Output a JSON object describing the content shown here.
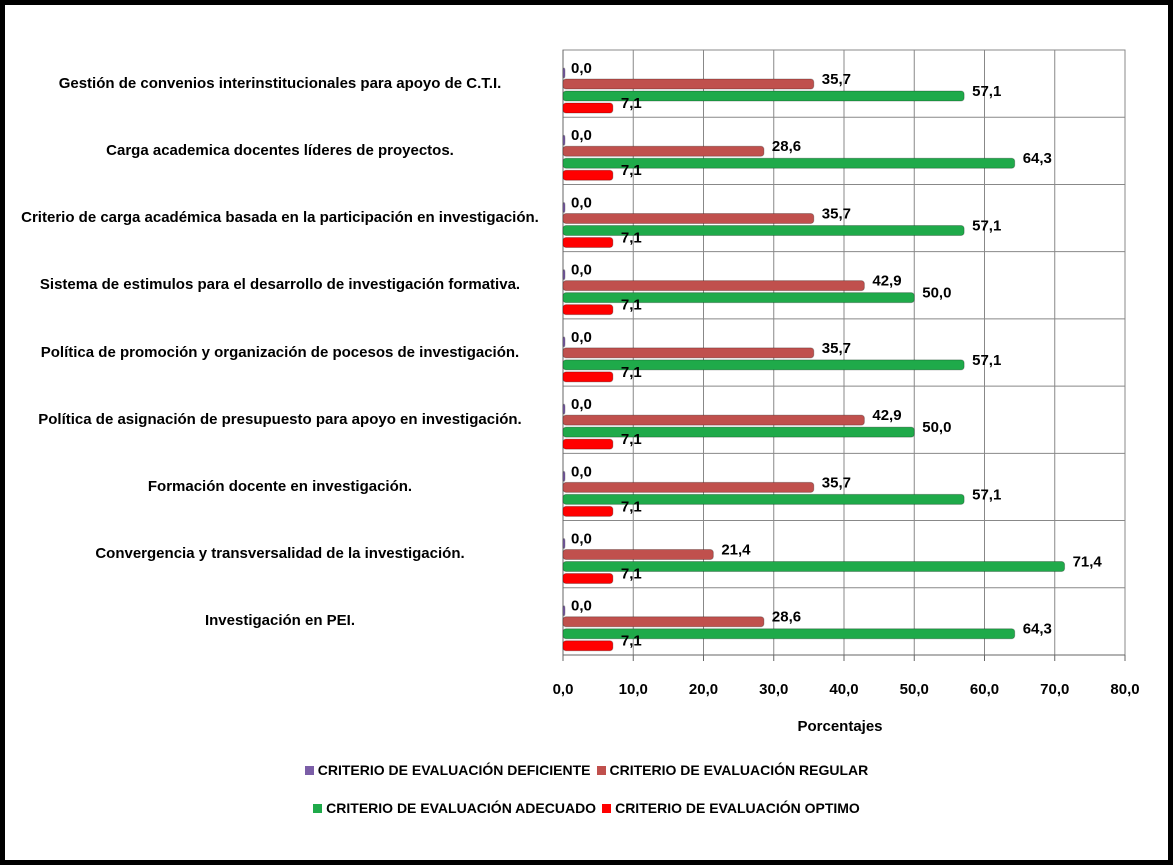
{
  "chart_data": {
    "type": "hbar",
    "x_label": "Porcentajes",
    "categories": [
      "Gestión de convenios interinstitucionales para apoyo de C.T.I.",
      "Carga academica docentes líderes de proyectos.",
      "Criterio de carga académica basada en la participación en investigación.",
      "Sistema de estimulos para el desarrollo de investigación formativa.",
      "Política de promoción y organización de pocesos de investigación.",
      "Política de asignación de presupuesto para apoyo en investigación.",
      "Formación docente en investigación.",
      "Convergencia y transversalidad de la investigación.",
      "Investigación en PEI."
    ],
    "series": [
      {
        "name": "CRITERIO  DE  EVALUACIÓN DEFICIENTE",
        "color": "#7b5ea7",
        "values": [
          0,
          0,
          0,
          0,
          0,
          0,
          0,
          0,
          0
        ],
        "value_labels": [
          "0,0",
          "0,0",
          "0,0",
          "0,0",
          "0,0",
          "0,0",
          "0,0",
          "0,0",
          "0,0"
        ]
      },
      {
        "name": "CRITERIO  DE  EVALUACIÓN REGULAR",
        "color": "#c0504d",
        "values": [
          35.7,
          28.6,
          35.7,
          42.9,
          35.7,
          42.9,
          35.7,
          21.4,
          28.6
        ],
        "value_labels": [
          "35,7",
          "28,6",
          "35,7",
          "42,9",
          "35,7",
          "42,9",
          "35,7",
          "21,4",
          "28,6"
        ]
      },
      {
        "name": "CRITERIO  DE  EVALUACIÓN ADECUADO",
        "color": "#1faa4a",
        "values": [
          57.1,
          64.3,
          57.1,
          50.0,
          57.1,
          50.0,
          57.1,
          71.4,
          64.3
        ],
        "value_labels": [
          "57,1",
          "64,3",
          "57,1",
          "50,0",
          "57,1",
          "50,0",
          "57,1",
          "71,4",
          "64,3"
        ]
      },
      {
        "name": "CRITERIO  DE  EVALUACIÓN OPTIMO",
        "color": "#ff0000",
        "values": [
          7.1,
          7.1,
          7.1,
          7.1,
          7.1,
          7.1,
          7.1,
          7.1,
          7.1
        ],
        "value_labels": [
          "7,1",
          "7,1",
          "7,1",
          "7,1",
          "7,1",
          "7,1",
          "7,1",
          "7,1",
          "7,1"
        ]
      }
    ],
    "xlim": [
      0,
      80
    ],
    "xticks": [
      {
        "value": 0,
        "label": "0,0"
      },
      {
        "value": 10,
        "label": "10,0"
      },
      {
        "value": 20,
        "label": "20,0"
      },
      {
        "value": 30,
        "label": "30,0"
      },
      {
        "value": 40,
        "label": "40,0"
      },
      {
        "value": 50,
        "label": "50,0"
      },
      {
        "value": 60,
        "label": "60,0"
      },
      {
        "value": 70,
        "label": "70,0"
      },
      {
        "value": 80,
        "label": "80,0"
      }
    ],
    "grid": true
  }
}
